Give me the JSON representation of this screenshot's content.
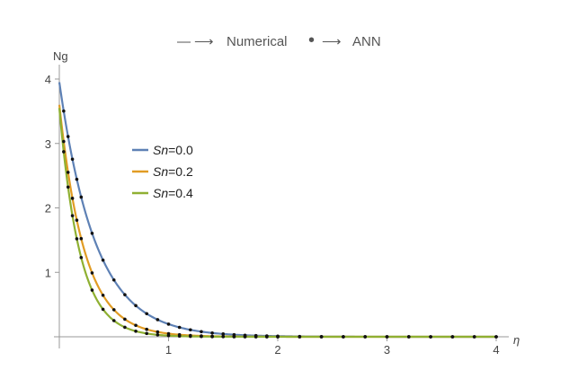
{
  "chart_data": {
    "type": "line",
    "top_legend": {
      "numerical_symbol": "—",
      "numerical_arrow": "⟶",
      "numerical_label": "Numerical",
      "ann_symbol": "•",
      "ann_arrow": "⟶",
      "ann_label": "ANN"
    },
    "ylabel": "Ng",
    "xlabel": "η",
    "xlim": [
      0,
      4
    ],
    "ylim": [
      0,
      4
    ],
    "x_ticks": [
      1,
      2,
      3,
      4
    ],
    "y_ticks": [
      1,
      2,
      3,
      4
    ],
    "legend_position": "upper-left-inside",
    "series": [
      {
        "name": "Sn=0.0",
        "name_var": "Sn",
        "name_val": "=0.0",
        "color": "#5E81B5",
        "y0": 3.95,
        "decay": 3.0
      },
      {
        "name": "Sn=0.2",
        "name_var": "Sn",
        "name_val": "=0.2",
        "color": "#E19C24",
        "y0": 3.6,
        "decay": 4.3
      },
      {
        "name": "Sn=0.4",
        "name_var": "Sn",
        "name_val": "=0.4",
        "color": "#8FB032",
        "y0": 3.55,
        "decay": 5.3
      }
    ],
    "ann_points_x": [
      0.04,
      0.08,
      0.12,
      0.16,
      0.2,
      0.3,
      0.4,
      0.5,
      0.6,
      0.7,
      0.8,
      0.9,
      1.0,
      1.1,
      1.2,
      1.3,
      1.4,
      1.5,
      1.6,
      1.7,
      1.8,
      1.9,
      2.0,
      2.2,
      2.4,
      2.6,
      2.8,
      3.0,
      3.2,
      3.4,
      3.6,
      3.8,
      4.0
    ],
    "ann_color": "#111111"
  }
}
